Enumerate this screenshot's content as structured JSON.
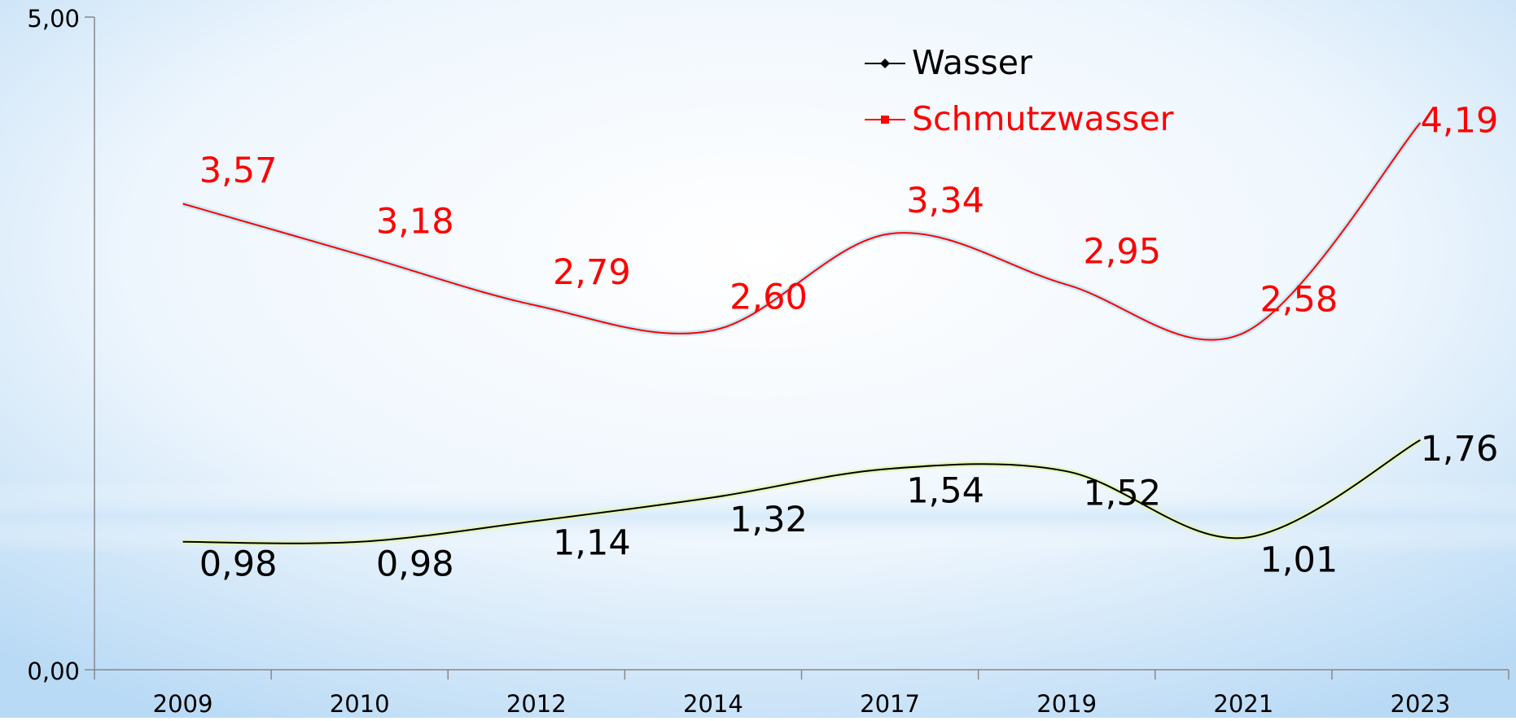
{
  "chart_data": {
    "type": "line",
    "categories": [
      "2009",
      "2010",
      "2012",
      "2014",
      "2017",
      "2019",
      "2021",
      "2023"
    ],
    "series": [
      {
        "name": "Wasser",
        "color": "#000000",
        "marker": "diamond",
        "values": [
          0.98,
          0.98,
          1.14,
          1.32,
          1.54,
          1.52,
          1.01,
          1.76
        ],
        "value_labels": [
          "0,98",
          "0,98",
          "1,14",
          "1,32",
          "1,54",
          "1,52",
          "1,01",
          "1,76"
        ]
      },
      {
        "name": "Schmutzwasser",
        "color": "#ff0000",
        "marker": "square",
        "values": [
          3.57,
          3.18,
          2.79,
          2.6,
          3.34,
          2.95,
          2.58,
          4.19
        ],
        "value_labels": [
          "3,57",
          "3,18",
          "2,79",
          "2,60",
          "3,34",
          "2,95",
          "2,58",
          "4,19"
        ]
      }
    ],
    "ylim": [
      0,
      5
    ],
    "yticks": [
      {
        "value": 0,
        "label": "0,00"
      },
      {
        "value": 5,
        "label": "5,00"
      }
    ],
    "smooth": true,
    "legend": "top"
  }
}
